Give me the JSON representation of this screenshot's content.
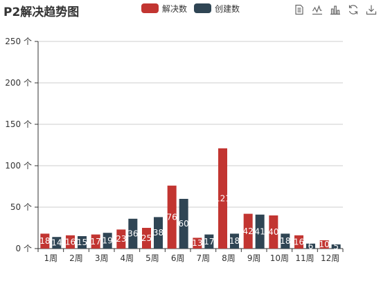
{
  "title": "P2解决趋势图",
  "toolbox": [
    "data-view-icon",
    "line-chart-icon",
    "bar-chart-icon",
    "restore-icon",
    "save-image-icon"
  ],
  "chart_data": {
    "type": "bar",
    "categories": [
      "1周",
      "2周",
      "3周",
      "4周",
      "5周",
      "6周",
      "7周",
      "8周",
      "9周",
      "10周",
      "11周",
      "12周"
    ],
    "series": [
      {
        "name": "解决数",
        "color": "#c23531",
        "values": [
          18,
          16,
          17,
          23,
          25,
          76,
          13,
          121,
          42,
          40,
          16,
          10
        ]
      },
      {
        "name": "创建数",
        "color": "#2f4554",
        "values": [
          14,
          15,
          19,
          36,
          38,
          60,
          17,
          18,
          41,
          18,
          6,
          5
        ]
      }
    ],
    "yticks": [
      "0 个",
      "50 个",
      "100 个",
      "150 个",
      "200 个",
      "250 个"
    ],
    "ylim": [
      0,
      250
    ],
    "grid": true,
    "legend_position": "top-center",
    "data_labels": true
  }
}
